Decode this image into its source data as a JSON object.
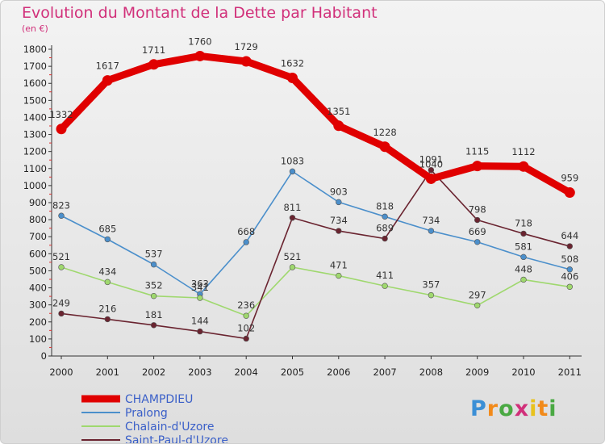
{
  "header": {
    "title": "Evolution du Montant de la Dette par Habitant",
    "subtitle": "(en €)"
  },
  "logo": {
    "text": "Proxiti"
  },
  "chart_data": {
    "type": "line",
    "title": "Evolution du Montant de la Dette par Habitant",
    "ylabel": "(en €)",
    "x": [
      "2000",
      "2001",
      "2002",
      "2003",
      "2004",
      "2005",
      "2006",
      "2007",
      "2008",
      "2009",
      "2010",
      "2011"
    ],
    "ylim": [
      0,
      1800
    ],
    "yticks": [
      0,
      100,
      200,
      300,
      400,
      500,
      600,
      700,
      800,
      900,
      1000,
      1100,
      1200,
      1300,
      1400,
      1500,
      1600,
      1700,
      1800
    ],
    "grid": false,
    "legend": "bottom-left",
    "series": [
      {
        "name": "CHAMPDIEU",
        "color": "#e00000",
        "emphasis": true,
        "values": [
          1332,
          1617,
          1711,
          1760,
          1729,
          1632,
          1351,
          1228,
          1040,
          1115,
          1112,
          959
        ]
      },
      {
        "name": "Pralong",
        "color": "#4b8fcb",
        "emphasis": false,
        "values": [
          823,
          685,
          537,
          363,
          668,
          1083,
          903,
          818,
          734,
          669,
          581,
          508
        ]
      },
      {
        "name": "Chalain-d'Uzore",
        "color": "#9fd86e",
        "emphasis": false,
        "values": [
          521,
          434,
          352,
          341,
          236,
          521,
          471,
          411,
          357,
          297,
          448,
          406
        ]
      },
      {
        "name": "Saint-Paul-d'Uzore",
        "color": "#6a2430",
        "emphasis": false,
        "values": [
          249,
          216,
          181,
          144,
          102,
          811,
          734,
          689,
          1091,
          798,
          718,
          644
        ]
      }
    ]
  }
}
